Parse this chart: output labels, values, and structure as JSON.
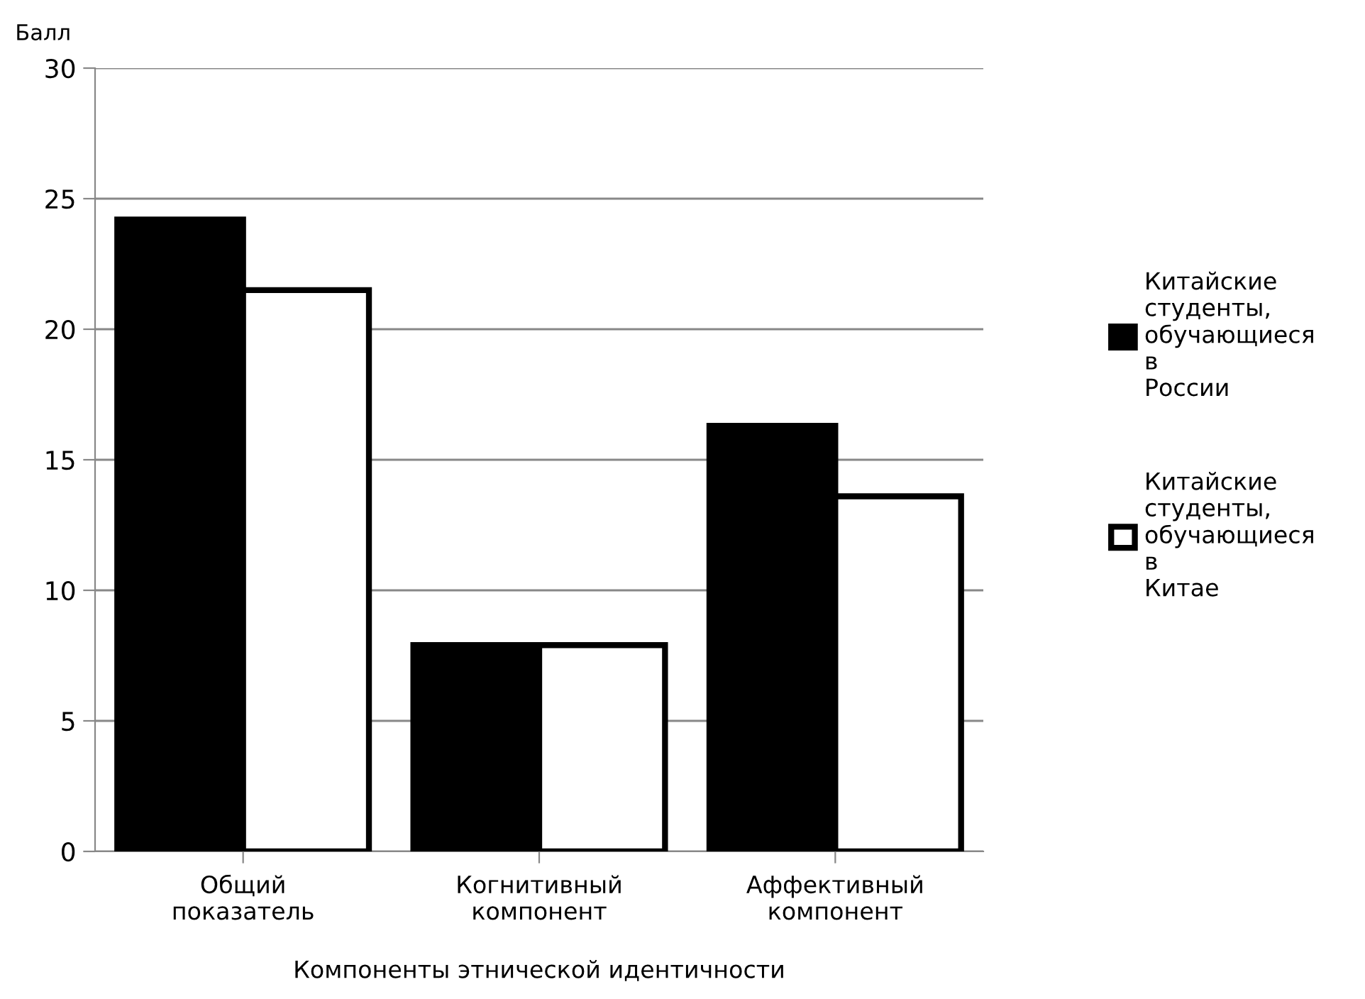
{
  "chart_data": {
    "type": "bar",
    "ylabel": "Балл",
    "xlabel": "Компоненты этнической идентичности",
    "categories": [
      "Общий показатель",
      "Когнитивный компонент",
      "Аффективный компонент"
    ],
    "series": [
      {
        "name": "Китайские студенты, обучающиеся в России",
        "color": "#000000",
        "values": [
          24.2,
          7.9,
          16.3
        ]
      },
      {
        "name": "Китайские студенты, обучающиеся в Китае",
        "color": "#ffffff",
        "values": [
          21.5,
          7.9,
          13.6
        ]
      }
    ],
    "ylim": [
      0,
      30
    ],
    "yticks": [
      0,
      5,
      10,
      15,
      20,
      25,
      30
    ],
    "grid": "y",
    "legend": "right"
  }
}
